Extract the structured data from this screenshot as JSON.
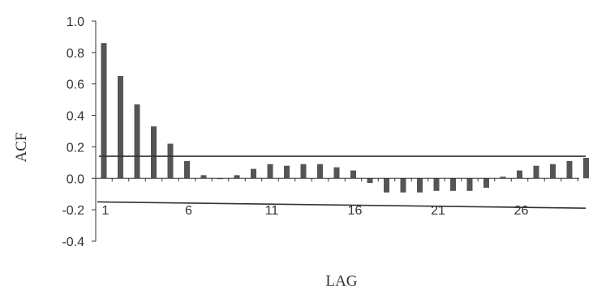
{
  "chart_data": {
    "type": "bar",
    "title": "",
    "xlabel": "LAG",
    "ylabel": "ACF",
    "ylim": [
      -0.4,
      1.0
    ],
    "y_ticks": [
      "1.0",
      "0.8",
      "0.6",
      "0.4",
      "0.2",
      "0.0",
      "-0.2",
      "-0.4"
    ],
    "x_tick_labels": [
      "1",
      "6",
      "11",
      "16",
      "21",
      "26"
    ],
    "x_tick_lags": [
      1,
      6,
      11,
      16,
      21,
      26
    ],
    "categories": [
      1,
      2,
      3,
      4,
      5,
      6,
      7,
      8,
      9,
      10,
      11,
      12,
      13,
      14,
      15,
      16,
      17,
      18,
      19,
      20,
      21,
      22,
      23,
      24,
      25,
      26,
      27,
      28,
      29,
      30
    ],
    "values": [
      0.86,
      0.65,
      0.47,
      0.33,
      0.22,
      0.11,
      0.02,
      0.0,
      0.02,
      0.06,
      0.09,
      0.08,
      0.09,
      0.09,
      0.07,
      0.05,
      -0.03,
      -0.09,
      -0.09,
      -0.09,
      -0.08,
      -0.08,
      -0.08,
      -0.06,
      0.01,
      0.05,
      0.08,
      0.09,
      0.11,
      0.13
    ],
    "confidence_bounds": {
      "upper": [
        0.14,
        0.14
      ],
      "lower": [
        -0.15,
        -0.19
      ]
    },
    "grid": false,
    "bar_color": "#555555",
    "line_color": "#333333"
  }
}
